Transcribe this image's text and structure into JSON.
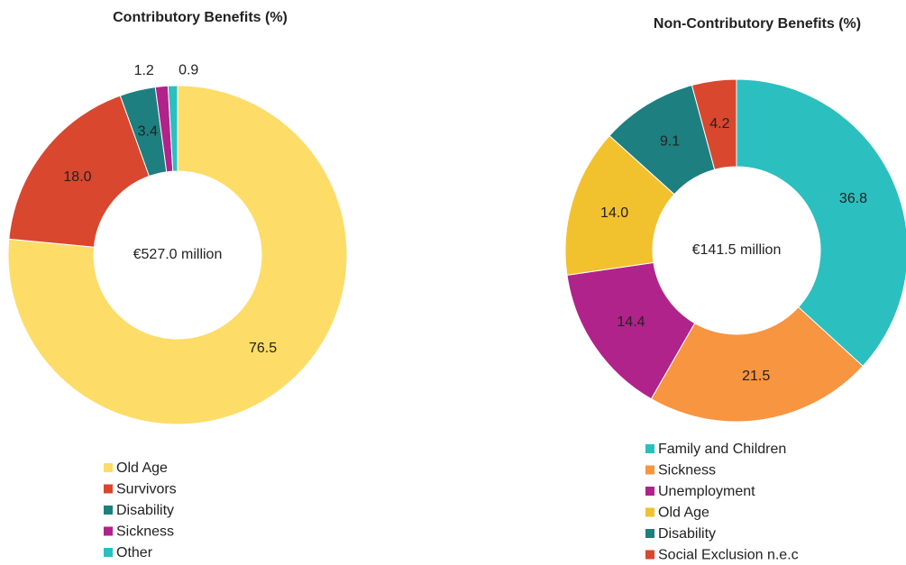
{
  "chart_data": [
    {
      "type": "donut",
      "title": "Contributory Benefits (%)",
      "center_label": "€527.0 million",
      "categories": [
        "Old Age",
        "Survivors",
        "Disability",
        "Sickness",
        "Other"
      ],
      "values": [
        76.5,
        18.0,
        3.4,
        1.2,
        0.9
      ],
      "value_labels": [
        "76.5",
        "18.0",
        "3.4",
        "1.2",
        "0.9"
      ],
      "colors": [
        "#fddc68",
        "#d9472f",
        "#1d7f7f",
        "#b0238a",
        "#2bbfbf"
      ]
    },
    {
      "type": "donut",
      "title": "Non-Contributory Benefits (%)",
      "center_label": "€141.5 million",
      "categories": [
        "Family and Children",
        "Sickness",
        "Unemployment",
        "Old Age",
        "Disability",
        "Social Exclusion n.e.c"
      ],
      "values": [
        36.8,
        21.5,
        14.4,
        14.0,
        9.1,
        4.2
      ],
      "value_labels": [
        "36.8",
        "21.5",
        "14.4",
        "14.0",
        "9.1",
        "4.2"
      ],
      "colors": [
        "#2bbfbf",
        "#f79540",
        "#b0238a",
        "#f2c12e",
        "#1d7f7f",
        "#d9472f"
      ]
    }
  ]
}
